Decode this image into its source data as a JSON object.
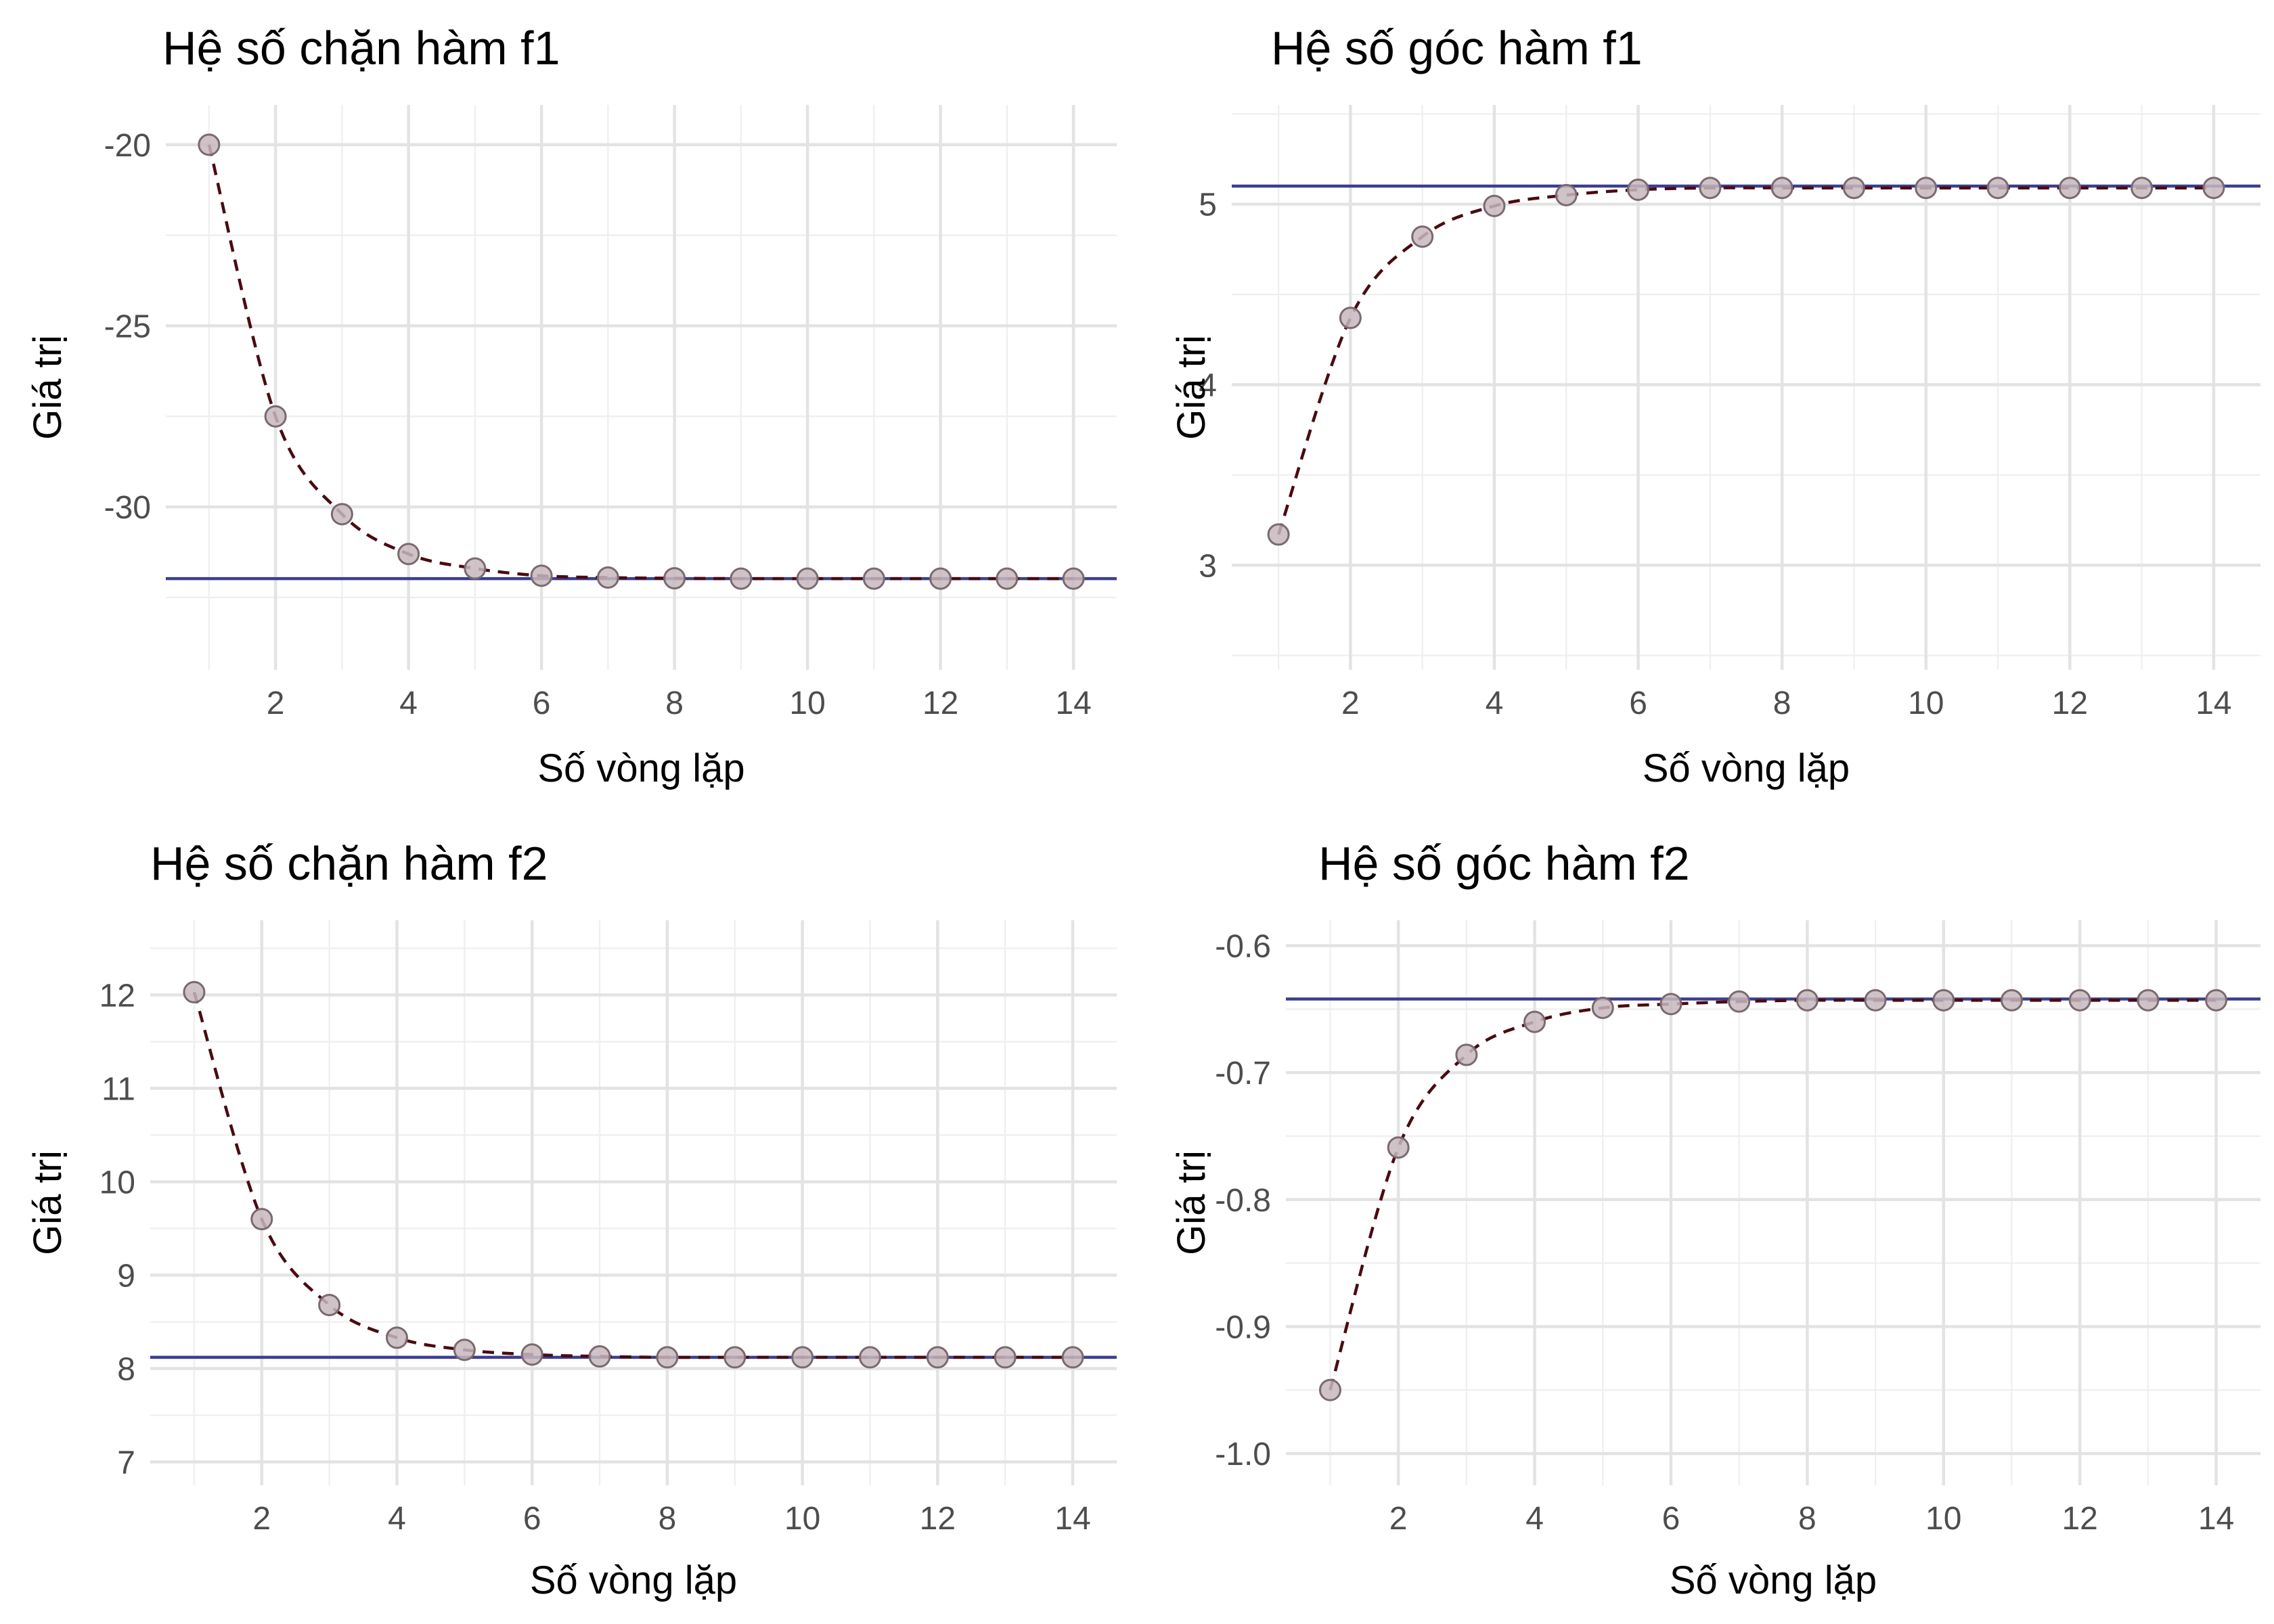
{
  "colors": {
    "reference_line": "#3c3f8e",
    "estimate_line": "#4a0a12",
    "point_fill": "#c7b8be",
    "point_stroke": "#7a6a70",
    "grid": "#e3e3e3"
  },
  "chart_data": [
    {
      "type": "line",
      "title": "Hệ số chặn hàm f1",
      "xlabel": "Số vòng lặp",
      "ylabel": "Giá trị",
      "x": [
        1,
        2,
        3,
        4,
        5,
        6,
        7,
        8,
        9,
        10,
        11,
        12,
        13,
        14
      ],
      "values": [
        -20.0,
        -27.5,
        -30.2,
        -31.3,
        -31.7,
        -31.9,
        -31.95,
        -31.97,
        -31.98,
        -31.98,
        -31.98,
        -31.98,
        -31.98,
        -31.98
      ],
      "reference_value": -31.98,
      "xlim": [
        0.35,
        14.65
      ],
      "ylim": [
        -34.5,
        -18.9
      ],
      "xticks": [
        2,
        4,
        6,
        8,
        10,
        12,
        14
      ],
      "xtick_labels": [
        "2",
        "4",
        "6",
        "8",
        "10",
        "12",
        "14"
      ],
      "yticks": [
        -30,
        -25,
        -20
      ],
      "ytick_labels": [
        "-30",
        "-25",
        "-20"
      ],
      "grid": true,
      "legend": "none"
    },
    {
      "type": "line",
      "title": "Hệ số góc hàm f1",
      "xlabel": "Số vòng lặp",
      "ylabel": "Giá trị",
      "x": [
        1,
        2,
        3,
        4,
        5,
        6,
        7,
        8,
        9,
        10,
        11,
        12,
        13,
        14
      ],
      "values": [
        3.17,
        4.37,
        4.82,
        4.99,
        5.05,
        5.08,
        5.09,
        5.09,
        5.09,
        5.09,
        5.09,
        5.09,
        5.09,
        5.09
      ],
      "reference_value": 5.1,
      "xlim": [
        0.35,
        14.65
      ],
      "ylim": [
        2.42,
        5.55
      ],
      "xticks": [
        2,
        4,
        6,
        8,
        10,
        12,
        14
      ],
      "xtick_labels": [
        "2",
        "4",
        "6",
        "8",
        "10",
        "12",
        "14"
      ],
      "yticks": [
        3,
        4,
        5
      ],
      "ytick_labels": [
        "3",
        "4",
        "5"
      ],
      "grid": true,
      "legend": "none"
    },
    {
      "type": "line",
      "title": "Hệ số chặn hàm f2",
      "xlabel": "Số vòng lặp",
      "ylabel": "Giá trị",
      "x": [
        1,
        2,
        3,
        4,
        5,
        6,
        7,
        8,
        9,
        10,
        11,
        12,
        13,
        14
      ],
      "values": [
        12.03,
        9.6,
        8.68,
        8.33,
        8.2,
        8.15,
        8.13,
        8.12,
        8.12,
        8.12,
        8.12,
        8.12,
        8.12,
        8.12
      ],
      "reference_value": 8.12,
      "xlim": [
        0.35,
        14.65
      ],
      "ylim": [
        6.75,
        12.8
      ],
      "xticks": [
        2,
        4,
        6,
        8,
        10,
        12,
        14
      ],
      "xtick_labels": [
        "2",
        "4",
        "6",
        "8",
        "10",
        "12",
        "14"
      ],
      "yticks": [
        7,
        8,
        9,
        10,
        11,
        12
      ],
      "ytick_labels": [
        "7",
        "8",
        "9",
        "10",
        "11",
        "12"
      ],
      "grid": true,
      "legend": "none"
    },
    {
      "type": "line",
      "title": "Hệ số góc hàm f2",
      "xlabel": "Số vòng lặp",
      "ylabel": "Giá trị",
      "x": [
        1,
        2,
        3,
        4,
        5,
        6,
        7,
        8,
        9,
        10,
        11,
        12,
        13,
        14
      ],
      "values": [
        -0.95,
        -0.759,
        -0.686,
        -0.66,
        -0.649,
        -0.646,
        -0.644,
        -0.643,
        -0.643,
        -0.643,
        -0.643,
        -0.643,
        -0.643,
        -0.643
      ],
      "reference_value": -0.642,
      "xlim": [
        0.35,
        14.65
      ],
      "ylim": [
        -1.025,
        -0.58
      ],
      "xticks": [
        2,
        4,
        6,
        8,
        10,
        12,
        14
      ],
      "xtick_labels": [
        "2",
        "4",
        "6",
        "8",
        "10",
        "12",
        "14"
      ],
      "yticks": [
        -1.0,
        -0.9,
        -0.8,
        -0.7,
        -0.6
      ],
      "ytick_labels": [
        "-1.0",
        "-0.9",
        "-0.8",
        "-0.7",
        "-0.6"
      ],
      "grid": true,
      "legend": "none"
    }
  ]
}
